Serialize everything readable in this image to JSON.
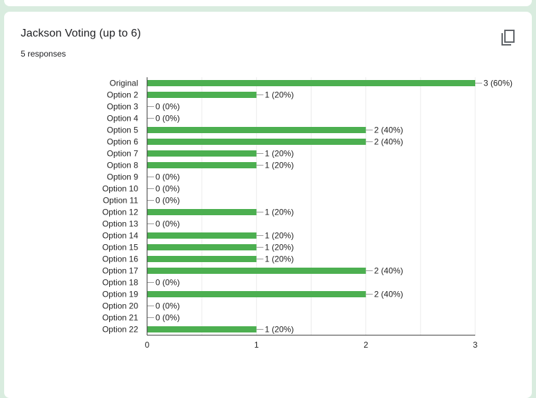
{
  "question": {
    "title": "Jackson Voting (up to 6)",
    "responses": "5 responses",
    "copy_icon": "copy-icon"
  },
  "colors": {
    "bar": "#4caf50",
    "background": "#d9ecdf",
    "card": "#ffffff",
    "axis": "#333333",
    "grid": "#ebebeb"
  },
  "chart_data": {
    "type": "bar",
    "orientation": "horizontal",
    "categories": [
      "Original",
      "Option 2",
      "Option 3",
      "Option 4",
      "Option 5",
      "Option 6",
      "Option 7",
      "Option 8",
      "Option 9",
      "Option 10",
      "Option 11",
      "Option 12",
      "Option 13",
      "Option 14",
      "Option 15",
      "Option 16",
      "Option 17",
      "Option 18",
      "Option 19",
      "Option 20",
      "Option 21",
      "Option 22"
    ],
    "values": [
      3,
      1,
      0,
      0,
      2,
      2,
      1,
      1,
      0,
      0,
      0,
      1,
      0,
      1,
      1,
      1,
      2,
      0,
      2,
      0,
      0,
      1
    ],
    "data_labels": [
      "3 (60%)",
      "1 (20%)",
      "0 (0%)",
      "0 (0%)",
      "2 (40%)",
      "2 (40%)",
      "1 (20%)",
      "1 (20%)",
      "0 (0%)",
      "0 (0%)",
      "0 (0%)",
      "1 (20%)",
      "0 (0%)",
      "1 (20%)",
      "1 (20%)",
      "1 (20%)",
      "2 (40%)",
      "0 (0%)",
      "2 (40%)",
      "0 (0%)",
      "0 (0%)",
      "1 (20%)"
    ],
    "xticks": [
      "0",
      "1",
      "2",
      "3"
    ],
    "xlim": [
      0,
      3
    ],
    "grid": true,
    "legend": "none"
  }
}
